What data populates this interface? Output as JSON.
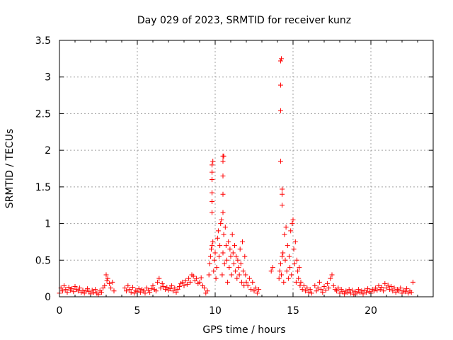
{
  "chart_data": {
    "type": "scatter",
    "title": "Day 029 of 2023, SRMTID for receiver kunz",
    "xlabel": "GPS time / hours",
    "ylabel": "SRMTID / TECUs",
    "xlim": [
      0,
      24
    ],
    "ylim": [
      0,
      3.5
    ],
    "xticks": [
      0,
      5,
      10,
      15,
      20
    ],
    "xtick_labels": [
      "0",
      "5",
      "10",
      "15",
      "20"
    ],
    "yticks": [
      0,
      0.5,
      1,
      1.5,
      2,
      2.5,
      3,
      3.5
    ],
    "ytick_labels": [
      "0",
      "0.5",
      "1",
      "1.5",
      "2",
      "2.5",
      "3",
      "3.5"
    ],
    "grid": true,
    "marker": "+",
    "color": "#ff0000",
    "series": [
      {
        "name": "SRMTID",
        "x": [
          0.0,
          0.1,
          0.2,
          0.3,
          0.4,
          0.5,
          0.6,
          0.7,
          0.8,
          0.9,
          1.0,
          1.1,
          1.2,
          1.3,
          1.4,
          1.5,
          1.6,
          1.7,
          1.8,
          1.9,
          2.0,
          2.1,
          2.2,
          2.3,
          2.4,
          2.5,
          2.6,
          2.7,
          2.8,
          2.9,
          3.0,
          3.05,
          3.1,
          3.2,
          3.3,
          3.4,
          3.5,
          4.2,
          4.3,
          4.4,
          4.5,
          4.6,
          4.7,
          4.8,
          4.9,
          5.0,
          5.1,
          5.2,
          5.3,
          5.4,
          5.5,
          5.6,
          5.7,
          5.8,
          5.9,
          6.0,
          6.1,
          6.2,
          6.3,
          6.4,
          6.5,
          6.6,
          6.7,
          6.8,
          6.9,
          7.0,
          7.1,
          7.2,
          7.3,
          7.4,
          7.5,
          7.6,
          7.7,
          7.8,
          7.9,
          8.0,
          8.1,
          8.2,
          8.3,
          8.4,
          8.5,
          8.6,
          8.7,
          8.8,
          8.9,
          9.0,
          9.1,
          9.2,
          9.3,
          9.4,
          9.5,
          9.6,
          9.65,
          9.7,
          9.75,
          9.8,
          9.85,
          9.9,
          9.95,
          10.0,
          10.05,
          10.1,
          10.15,
          10.2,
          10.25,
          10.3,
          10.35,
          10.4,
          10.45,
          10.5,
          10.55,
          10.6,
          10.65,
          10.7,
          10.75,
          10.8,
          10.85,
          10.9,
          10.95,
          11.0,
          11.05,
          11.1,
          11.15,
          11.2,
          11.25,
          11.3,
          11.35,
          11.4,
          11.45,
          11.5,
          11.55,
          11.6,
          11.65,
          11.7,
          11.75,
          11.8,
          11.85,
          11.9,
          11.95,
          12.0,
          12.1,
          12.2,
          12.3,
          12.4,
          12.5,
          12.6,
          12.7,
          12.8,
          13.6,
          13.7,
          14.1,
          14.15,
          14.2,
          14.25,
          14.3,
          14.35,
          14.4,
          14.45,
          14.5,
          14.55,
          14.6,
          14.65,
          14.7,
          14.75,
          14.8,
          14.85,
          14.9,
          14.95,
          15.0,
          15.05,
          15.1,
          15.15,
          15.2,
          15.25,
          15.3,
          15.35,
          15.4,
          15.45,
          15.5,
          15.6,
          15.7,
          15.8,
          15.9,
          16.0,
          16.1,
          16.2,
          16.4,
          16.5,
          16.6,
          16.7,
          16.8,
          16.9,
          17.0,
          17.1,
          17.2,
          17.3,
          17.4,
          17.5,
          17.6,
          17.7,
          17.8,
          17.9,
          18.0,
          18.1,
          18.2,
          18.3,
          18.4,
          18.5,
          18.6,
          18.7,
          18.8,
          18.9,
          19.0,
          19.1,
          19.2,
          19.3,
          19.4,
          19.5,
          19.6,
          19.7,
          19.8,
          19.9,
          20.0,
          20.1,
          20.2,
          20.3,
          20.4,
          20.5,
          20.6,
          20.7,
          20.8,
          20.9,
          21.0,
          21.1,
          21.2,
          21.3,
          21.4,
          21.5,
          21.6,
          21.7,
          21.8,
          21.9,
          22.0,
          22.1,
          22.2,
          22.3,
          22.4,
          22.5,
          22.6,
          22.7,
          9.8,
          9.8,
          9.8,
          9.8,
          9.8,
          9.8,
          9.85,
          10.5,
          10.5,
          10.5,
          10.55,
          10.5,
          10.5,
          14.2,
          14.2,
          14.2,
          14.2,
          14.25,
          14.3,
          14.3,
          14.3
        ],
        "y": [
          0.05,
          0.12,
          0.08,
          0.15,
          0.1,
          0.06,
          0.13,
          0.09,
          0.11,
          0.07,
          0.14,
          0.1,
          0.08,
          0.12,
          0.06,
          0.09,
          0.05,
          0.08,
          0.11,
          0.07,
          0.04,
          0.09,
          0.06,
          0.1,
          0.05,
          0.03,
          0.08,
          0.06,
          0.12,
          0.15,
          0.3,
          0.22,
          0.25,
          0.18,
          0.12,
          0.2,
          0.08,
          0.12,
          0.08,
          0.15,
          0.1,
          0.06,
          0.13,
          0.05,
          0.09,
          0.07,
          0.11,
          0.06,
          0.1,
          0.08,
          0.05,
          0.12,
          0.09,
          0.06,
          0.11,
          0.15,
          0.1,
          0.08,
          0.2,
          0.25,
          0.12,
          0.18,
          0.14,
          0.1,
          0.13,
          0.09,
          0.11,
          0.15,
          0.08,
          0.12,
          0.06,
          0.1,
          0.14,
          0.18,
          0.2,
          0.15,
          0.22,
          0.17,
          0.25,
          0.2,
          0.3,
          0.28,
          0.22,
          0.25,
          0.18,
          0.2,
          0.26,
          0.15,
          0.12,
          0.05,
          0.08,
          0.3,
          0.45,
          0.55,
          0.65,
          0.7,
          0.75,
          0.35,
          0.5,
          0.6,
          0.25,
          0.4,
          0.8,
          0.9,
          0.55,
          0.7,
          1.0,
          1.05,
          0.3,
          0.6,
          0.85,
          0.45,
          0.95,
          0.7,
          0.5,
          0.2,
          0.75,
          0.4,
          0.65,
          0.55,
          0.3,
          0.85,
          0.6,
          0.45,
          0.7,
          0.35,
          0.55,
          0.25,
          0.5,
          0.4,
          0.3,
          0.65,
          0.45,
          0.2,
          0.75,
          0.35,
          0.15,
          0.55,
          0.3,
          0.2,
          0.15,
          0.25,
          0.1,
          0.2,
          0.08,
          0.12,
          0.05,
          0.1,
          0.35,
          0.4,
          0.25,
          0.35,
          0.45,
          0.3,
          0.55,
          0.6,
          0.2,
          0.85,
          0.5,
          0.95,
          0.35,
          0.7,
          0.25,
          0.55,
          0.4,
          0.9,
          0.3,
          1.0,
          1.05,
          0.65,
          0.45,
          0.75,
          0.2,
          0.5,
          0.35,
          0.25,
          0.4,
          0.15,
          0.2,
          0.1,
          0.15,
          0.08,
          0.12,
          0.06,
          0.1,
          0.05,
          0.15,
          0.08,
          0.12,
          0.2,
          0.1,
          0.06,
          0.14,
          0.09,
          0.18,
          0.12,
          0.25,
          0.3,
          0.15,
          0.1,
          0.08,
          0.12,
          0.05,
          0.1,
          0.07,
          0.04,
          0.08,
          0.06,
          0.1,
          0.05,
          0.09,
          0.03,
          0.07,
          0.05,
          0.1,
          0.06,
          0.08,
          0.04,
          0.09,
          0.06,
          0.11,
          0.07,
          0.05,
          0.1,
          0.08,
          0.12,
          0.09,
          0.15,
          0.1,
          0.13,
          0.08,
          0.18,
          0.12,
          0.16,
          0.1,
          0.14,
          0.08,
          0.12,
          0.06,
          0.1,
          0.08,
          0.12,
          0.05,
          0.09,
          0.07,
          0.11,
          0.05,
          0.08,
          0.06,
          0.2,
          1.15,
          1.3,
          1.42,
          1.6,
          1.7,
          1.8,
          1.85,
          1.4,
          1.65,
          1.85,
          1.92,
          1.92,
          1.15,
          1.85,
          2.54,
          2.89,
          3.22,
          3.25,
          1.4,
          1.47,
          1.25
        ]
      }
    ]
  }
}
